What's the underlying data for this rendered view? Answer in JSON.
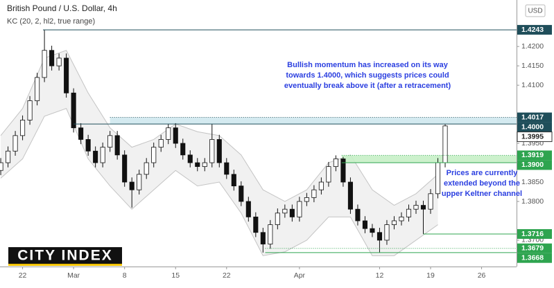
{
  "chart_data": {
    "type": "candlestick",
    "title": "British Pound / U.S. Dollar, 4h",
    "subtitle": "KC (20, 2, hl2, true range)",
    "currency": "USD",
    "logo": "CITY INDEX",
    "xlim": [
      -3.1,
      67.8
    ],
    "ylim": [
      1.3632,
      1.432
    ],
    "xticks": [
      {
        "value": 0,
        "label": "22"
      },
      {
        "value": 7,
        "label": "Mar"
      },
      {
        "value": 14,
        "label": "8"
      },
      {
        "value": 21,
        "label": "15"
      },
      {
        "value": 28,
        "label": "22"
      },
      {
        "value": 38,
        "label": "Apr"
      },
      {
        "value": 49,
        "label": "12"
      },
      {
        "value": 56,
        "label": "19"
      },
      {
        "value": 63,
        "label": "26"
      }
    ],
    "yticks": [
      {
        "value": 1.42,
        "label": "1.4200"
      },
      {
        "value": 1.415,
        "label": "1.4150"
      },
      {
        "value": 1.41,
        "label": "1.4100"
      },
      {
        "value": 1.395,
        "label": "1.3950"
      },
      {
        "value": 1.385,
        "label": "1.3850"
      },
      {
        "value": 1.38,
        "label": "1.3800"
      },
      {
        "value": 1.37,
        "label": "1.3700"
      }
    ],
    "x": [
      -3,
      -2,
      -1,
      0,
      1,
      2,
      3,
      4,
      5,
      6,
      7,
      8,
      9,
      10,
      11,
      12,
      13,
      14,
      15,
      16,
      17,
      18,
      19,
      20,
      21,
      22,
      23,
      24,
      25,
      26,
      27,
      28,
      29,
      30,
      31,
      32,
      33,
      34,
      35,
      36,
      37,
      38,
      39,
      40,
      41,
      42,
      43,
      44,
      45,
      46,
      47,
      48,
      49,
      50,
      51,
      52,
      53,
      54,
      55,
      56,
      57,
      58
    ],
    "open": [
      1.388,
      1.39,
      1.393,
      1.397,
      1.401,
      1.406,
      1.412,
      1.419,
      1.415,
      1.417,
      1.408,
      1.399,
      1.396,
      1.393,
      1.39,
      1.394,
      1.397,
      1.392,
      1.385,
      1.383,
      1.387,
      1.39,
      1.394,
      1.396,
      1.399,
      1.395,
      1.392,
      1.39,
      1.389,
      1.39,
      1.396,
      1.39,
      1.387,
      1.384,
      1.38,
      1.376,
      1.372,
      1.369,
      1.374,
      1.377,
      1.378,
      1.376,
      1.38,
      1.381,
      1.383,
      1.385,
      1.389,
      1.391,
      1.385,
      1.378,
      1.375,
      1.373,
      1.372,
      1.37,
      1.374,
      1.375,
      1.376,
      1.378,
      1.379,
      1.378,
      1.382,
      1.39
    ],
    "high": [
      1.3912,
      1.3942,
      1.3982,
      1.4022,
      1.4072,
      1.4132,
      1.4243,
      1.4202,
      1.4182,
      1.4182,
      1.4092,
      1.4002,
      1.3972,
      1.3942,
      1.3952,
      1.3982,
      1.3982,
      1.3932,
      1.3862,
      1.3882,
      1.3912,
      1.3952,
      1.3972,
      1.4,
      1.4002,
      1.3962,
      1.3932,
      1.3912,
      1.3912,
      1.4,
      1.3972,
      1.3912,
      1.3882,
      1.3852,
      1.3812,
      1.3772,
      1.3732,
      1.3752,
      1.3782,
      1.3792,
      1.3792,
      1.3812,
      1.3822,
      1.3842,
      1.3862,
      1.3902,
      1.3919,
      1.3915,
      1.3862,
      1.3792,
      1.3762,
      1.3742,
      1.3732,
      1.3752,
      1.3762,
      1.3772,
      1.3792,
      1.3802,
      1.3802,
      1.3832,
      1.3912,
      1.3999
    ],
    "low": [
      1.3868,
      1.3888,
      1.3918,
      1.3958,
      1.3998,
      1.4048,
      1.4108,
      1.4138,
      1.4138,
      1.4068,
      1.3978,
      1.3948,
      1.3918,
      1.3888,
      1.3888,
      1.3928,
      1.3908,
      1.3838,
      1.3784,
      1.3818,
      1.3858,
      1.3888,
      1.3928,
      1.3948,
      1.3938,
      1.3908,
      1.3888,
      1.3878,
      1.3878,
      1.3888,
      1.3888,
      1.3858,
      1.3828,
      1.3788,
      1.3748,
      1.3708,
      1.3668,
      1.3678,
      1.3728,
      1.3758,
      1.3748,
      1.3748,
      1.3788,
      1.3798,
      1.3818,
      1.3838,
      1.3878,
      1.3838,
      1.3768,
      1.3738,
      1.3718,
      1.3708,
      1.3668,
      1.3688,
      1.3728,
      1.3738,
      1.3748,
      1.3768,
      1.3716,
      1.3768,
      1.3808,
      1.3888
    ],
    "close": [
      1.39,
      1.393,
      1.397,
      1.401,
      1.406,
      1.412,
      1.419,
      1.415,
      1.417,
      1.408,
      1.399,
      1.396,
      1.393,
      1.39,
      1.394,
      1.397,
      1.392,
      1.385,
      1.383,
      1.387,
      1.39,
      1.394,
      1.396,
      1.399,
      1.395,
      1.392,
      1.39,
      1.389,
      1.39,
      1.396,
      1.39,
      1.387,
      1.384,
      1.38,
      1.376,
      1.372,
      1.369,
      1.374,
      1.377,
      1.378,
      1.376,
      1.38,
      1.381,
      1.383,
      1.385,
      1.389,
      1.391,
      1.385,
      1.378,
      1.375,
      1.373,
      1.372,
      1.37,
      1.374,
      1.375,
      1.376,
      1.378,
      1.379,
      1.378,
      1.382,
      1.39,
      1.3995
    ],
    "keltner": {
      "x": [
        -3,
        0,
        3,
        6,
        9,
        12,
        15,
        18,
        21,
        24,
        27,
        30,
        33,
        36,
        39,
        42,
        45,
        48,
        51,
        54,
        57
      ],
      "upper": [
        1.397,
        1.404,
        1.417,
        1.419,
        1.408,
        1.399,
        1.394,
        1.396,
        1.4,
        1.398,
        1.397,
        1.392,
        1.383,
        1.38,
        1.383,
        1.39,
        1.392,
        1.383,
        1.379,
        1.382,
        1.387
      ],
      "lower": [
        1.386,
        1.391,
        1.402,
        1.404,
        1.391,
        1.384,
        1.378,
        1.383,
        1.388,
        1.384,
        1.385,
        1.377,
        1.366,
        1.367,
        1.37,
        1.376,
        1.376,
        1.366,
        1.366,
        1.37,
        1.374
      ]
    },
    "zones": [
      {
        "low": 1.4,
        "high": 1.4017,
        "from": 12,
        "color": "#cfe8ee"
      },
      {
        "low": 1.39,
        "high": 1.3919,
        "from": 43.8,
        "color": "#c6efc6"
      }
    ],
    "levels": [
      {
        "value": 1.4243,
        "label": "1.4243",
        "from": 2.8,
        "style": "solid",
        "color": "#1f4e5a"
      },
      {
        "value": 1.4017,
        "label": "1.4017",
        "from": 12,
        "style": "dotted",
        "color": "#1f4e5a"
      },
      {
        "value": 1.4,
        "label": "1.4000",
        "from": 7,
        "style": "solid",
        "color": "#1f4e5a"
      },
      {
        "value": 1.3995,
        "label": "1.3995",
        "from": 58,
        "style": "none",
        "color": "#ffffff"
      },
      {
        "value": 1.3919,
        "label": "1.3919",
        "from": 43.8,
        "style": "dotted",
        "color": "#2ea44f"
      },
      {
        "value": 1.39,
        "label": "1.3900",
        "from": 43.8,
        "style": "solid",
        "color": "#2ea44f"
      },
      {
        "value": 1.3716,
        "label": "1.3716",
        "from": 55,
        "style": "solid",
        "color": "#2ea44f"
      },
      {
        "value": 1.3679,
        "label": "1.3679",
        "from": 33.3,
        "style": "dotted",
        "color": "#2ea44f"
      },
      {
        "value": 1.3668,
        "label": "1.3668",
        "from": 33.3,
        "style": "solid",
        "color": "#2ea44f"
      }
    ],
    "annotations": [
      {
        "lines": [
          "Bullish momentum has increased on its way",
          "towards 1.4000, which suggests prices could",
          "eventually break above it (after a retracement)"
        ],
        "color": "#2b3fe0"
      },
      {
        "lines": [
          "Prices are currently",
          "extended beyond the",
          "upper Keltner channel"
        ],
        "color": "#2b3fe0"
      }
    ]
  }
}
